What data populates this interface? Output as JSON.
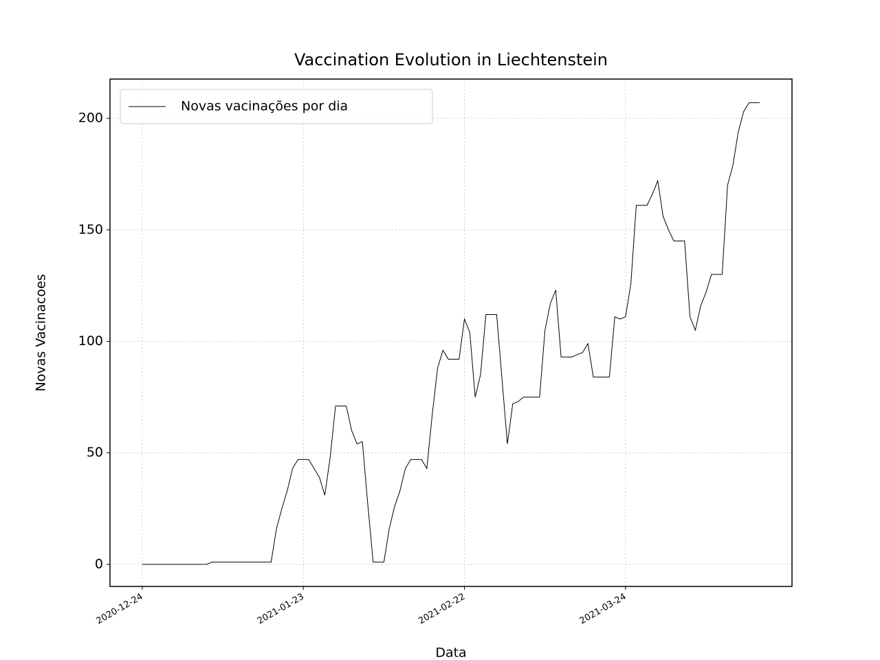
{
  "chart_data": {
    "type": "line",
    "title": "Vaccination Evolution in Liechtenstein",
    "x_label": "Data",
    "y_label": "Novas Vacinacoes",
    "x": [
      "2020-12-24",
      "2020-12-25",
      "2020-12-26",
      "2020-12-27",
      "2020-12-28",
      "2020-12-29",
      "2020-12-30",
      "2020-12-31",
      "2021-01-01",
      "2021-01-02",
      "2021-01-03",
      "2021-01-04",
      "2021-01-05",
      "2021-01-06",
      "2021-01-07",
      "2021-01-08",
      "2021-01-09",
      "2021-01-10",
      "2021-01-11",
      "2021-01-12",
      "2021-01-13",
      "2021-01-14",
      "2021-01-15",
      "2021-01-16",
      "2021-01-17",
      "2021-01-18",
      "2021-01-19",
      "2021-01-20",
      "2021-01-21",
      "2021-01-22",
      "2021-01-23",
      "2021-01-24",
      "2021-01-25",
      "2021-01-26",
      "2021-01-27",
      "2021-01-28",
      "2021-01-29",
      "2021-01-30",
      "2021-01-31",
      "2021-02-01",
      "2021-02-02",
      "2021-02-03",
      "2021-02-04",
      "2021-02-05",
      "2021-02-06",
      "2021-02-07",
      "2021-02-08",
      "2021-02-09",
      "2021-02-10",
      "2021-02-11",
      "2021-02-12",
      "2021-02-13",
      "2021-02-14",
      "2021-02-15",
      "2021-02-16",
      "2021-02-17",
      "2021-02-18",
      "2021-02-19",
      "2021-02-20",
      "2021-02-21",
      "2021-02-22",
      "2021-02-23",
      "2021-02-24",
      "2021-02-25",
      "2021-02-26",
      "2021-02-27",
      "2021-02-28",
      "2021-03-01",
      "2021-03-02",
      "2021-03-03",
      "2021-03-04",
      "2021-03-05",
      "2021-03-06",
      "2021-03-07",
      "2021-03-08",
      "2021-03-09",
      "2021-03-10",
      "2021-03-11",
      "2021-03-12",
      "2021-03-13",
      "2021-03-14",
      "2021-03-15",
      "2021-03-16",
      "2021-03-17",
      "2021-03-18",
      "2021-03-19",
      "2021-03-20",
      "2021-03-21",
      "2021-03-22",
      "2021-03-23",
      "2021-03-24",
      "2021-03-25",
      "2021-03-26",
      "2021-03-27",
      "2021-03-28",
      "2021-03-29",
      "2021-03-30",
      "2021-03-31",
      "2021-04-01",
      "2021-04-02",
      "2021-04-03",
      "2021-04-04",
      "2021-04-05",
      "2021-04-06",
      "2021-04-07",
      "2021-04-08",
      "2021-04-09",
      "2021-04-10",
      "2021-04-11",
      "2021-04-12",
      "2021-04-13",
      "2021-04-14",
      "2021-04-15",
      "2021-04-16",
      "2021-04-17",
      "2021-04-18"
    ],
    "series": [
      {
        "name": "Novas vacinações por dia",
        "color": "#000000",
        "values": [
          0,
          0,
          0,
          0,
          0,
          0,
          0,
          0,
          0,
          0,
          0,
          0,
          0,
          1,
          1,
          1,
          1,
          1,
          1,
          1,
          1,
          1,
          1,
          1,
          1,
          16,
          25,
          33,
          43,
          47,
          47,
          47,
          43,
          39,
          31,
          48,
          71,
          71,
          71,
          60,
          54,
          55,
          27,
          1,
          1,
          1,
          16,
          26,
          33,
          43,
          47,
          47,
          47,
          43,
          67,
          88,
          96,
          92,
          92,
          92,
          110,
          104,
          75,
          85,
          112,
          112,
          112,
          83,
          54,
          72,
          73,
          75,
          75,
          75,
          75,
          105,
          117,
          123,
          93,
          93,
          93,
          94,
          95,
          99,
          84,
          84,
          84,
          84,
          111,
          110,
          111,
          126,
          161,
          161,
          161,
          166,
          172,
          156,
          150,
          145,
          145,
          145,
          111,
          105,
          116,
          122,
          130,
          130,
          130,
          170,
          179,
          194,
          203,
          207,
          207,
          207
        ]
      }
    ],
    "xlim": [
      "2020-12-18",
      "2021-04-24"
    ],
    "xticks": [
      "2020-12-24",
      "2021-01-23",
      "2021-02-22",
      "2021-03-24"
    ],
    "ylim": [
      -9.9,
      217.6
    ],
    "yticks": [
      0,
      50,
      100,
      150,
      200
    ],
    "grid": true,
    "legend": "upper left"
  }
}
